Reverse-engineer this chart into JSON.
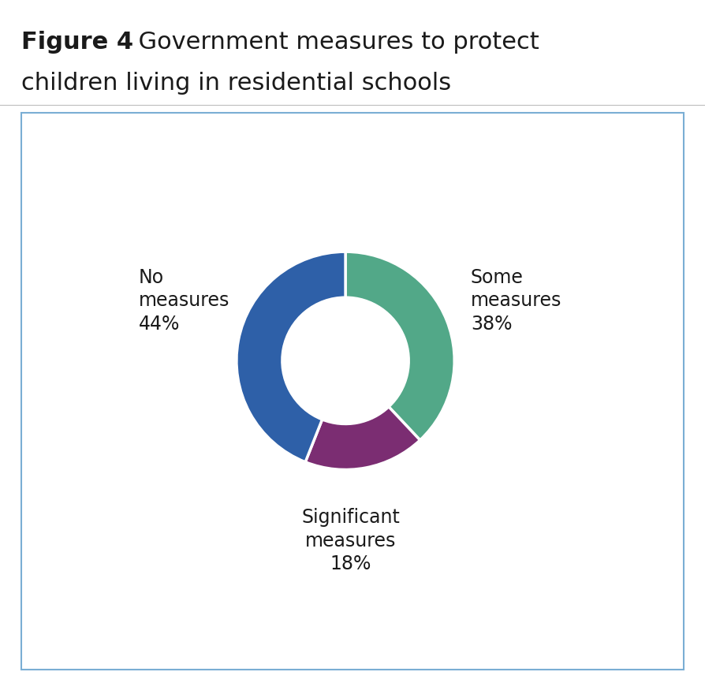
{
  "title_bold": "Figure 4",
  "title_rest_line1": "  Government measures to protect",
  "title_line2": "children living in residential schools",
  "slices": [
    38,
    18,
    44
  ],
  "colors": [
    "#52a888",
    "#7b2d72",
    "#2e60a8"
  ],
  "slice_order": [
    "Some measures 38%",
    "Significant measures 18%",
    "No measures 44%"
  ],
  "startangle": 90,
  "donut_width": 0.42,
  "background_color": "#ffffff",
  "border_color": "#7aaed4",
  "label_fontsize": 17,
  "title_bold_fontsize": 22,
  "title_regular_fontsize": 22,
  "text_color": "#1a1a1a"
}
